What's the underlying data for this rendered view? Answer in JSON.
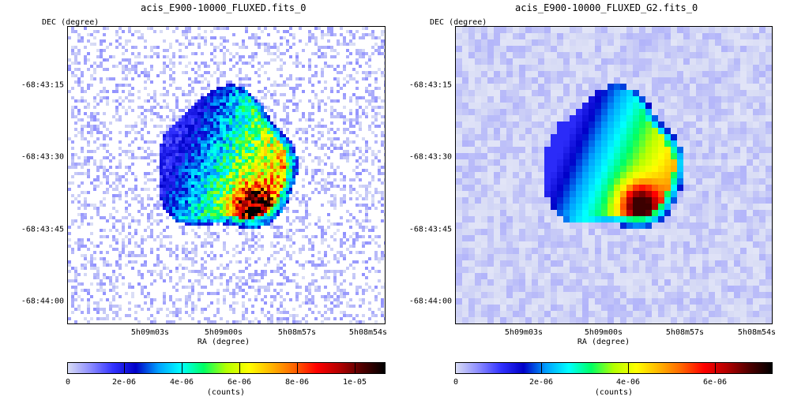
{
  "panels": [
    {
      "title": "acis_E900-10000_FLUXED.fits_0",
      "ylabel": "DEC (degree)",
      "xlabel": "RA (degree)",
      "yticks": [
        "-68:43:15",
        "-68:43:30",
        "-68:43:45",
        "-68:44:00"
      ],
      "xticks": [
        "5h09m03s",
        "5h09m00s",
        "5h08m57s",
        "5h08m54s"
      ],
      "colorbar": {
        "ticks": [
          "0",
          "2e-06",
          "4e-06",
          "6e-06",
          "8e-06",
          "1e-05"
        ],
        "label": "(counts)"
      }
    },
    {
      "title": "acis_E900-10000_FLUXED_G2.fits_0",
      "ylabel": "DEC (degree)",
      "xlabel": "RA (degree)",
      "yticks": [
        "-68:43:15",
        "-68:43:30",
        "-68:43:45",
        "-68:44:00"
      ],
      "xticks": [
        "5h09m03s",
        "5h09m00s",
        "5h08m57s",
        "5h08m54s"
      ],
      "colorbar": {
        "ticks": [
          "0",
          "2e-06",
          "4e-06",
          "6e-06"
        ],
        "label": "(counts)"
      }
    }
  ],
  "colormap": [
    "#ffffff",
    "#d8dcf5",
    "#8c8cff",
    "#3232ff",
    "#0000c8",
    "#00a0ff",
    "#00ffff",
    "#00ff64",
    "#b4ff00",
    "#ffff00",
    "#ffb400",
    "#ff6400",
    "#ff0000",
    "#b40000",
    "#500000",
    "#000000"
  ]
}
